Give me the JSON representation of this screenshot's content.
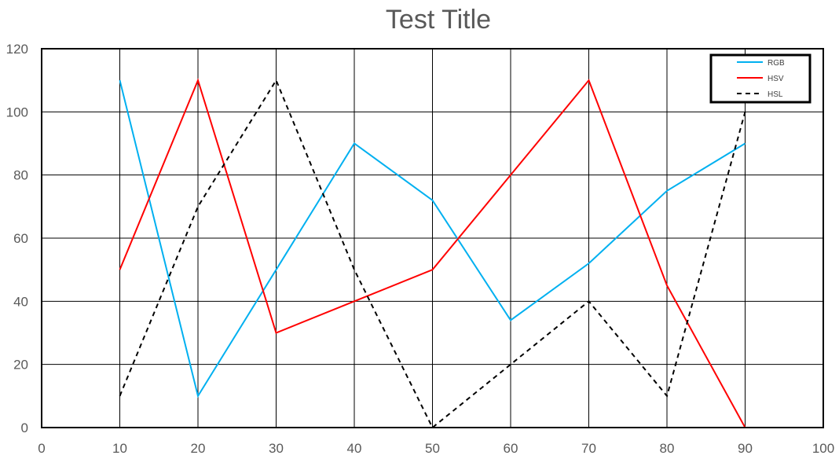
{
  "chart_data": {
    "type": "line",
    "title": "Test Title",
    "xlabel": "",
    "ylabel": "",
    "xlim": [
      0,
      100
    ],
    "ylim": [
      0,
      120
    ],
    "x_ticks": [
      0,
      10,
      20,
      30,
      40,
      50,
      60,
      70,
      80,
      90,
      100
    ],
    "y_ticks": [
      0,
      20,
      40,
      60,
      80,
      100,
      120
    ],
    "grid": true,
    "legend_position": "top-right",
    "x": [
      10,
      20,
      30,
      40,
      50,
      60,
      70,
      80,
      90
    ],
    "series": [
      {
        "name": "RGB",
        "color": "#00b0f0",
        "dash": "solid",
        "values": [
          110,
          10,
          50,
          90,
          72,
          34,
          52,
          75,
          90
        ]
      },
      {
        "name": "HSV",
        "color": "#ff0000",
        "dash": "solid",
        "values": [
          50,
          110,
          30,
          40,
          50,
          80,
          110,
          45,
          0
        ]
      },
      {
        "name": "HSL",
        "color": "#000000",
        "dash": "dashed",
        "values": [
          10,
          70,
          110,
          50,
          0,
          20,
          40,
          10,
          100
        ]
      }
    ]
  }
}
